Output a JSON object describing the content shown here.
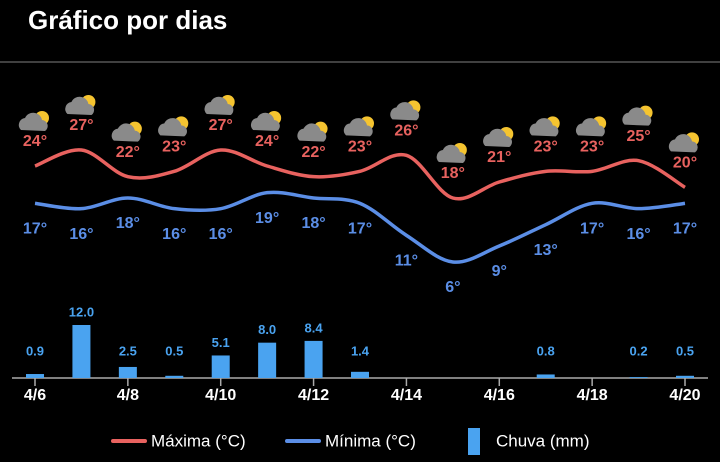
{
  "chart_data": {
    "type": "weather",
    "title": "Gráfico por dias",
    "categories": [
      "4/6",
      null,
      "4/8",
      null,
      "4/10",
      null,
      "4/12",
      null,
      "4/14",
      null,
      "4/16",
      null,
      "4/18",
      null,
      "4/20"
    ],
    "series": [
      {
        "name": "Máxima (°C)",
        "color": "#e8625f",
        "type": "line",
        "values": [
          24,
          27,
          22,
          23,
          27,
          24,
          22,
          23,
          26,
          18,
          21,
          23,
          23,
          25,
          20
        ],
        "value_labels": [
          "24°",
          "27°",
          "22°",
          "23°",
          "27°",
          "24°",
          "22°",
          "23°",
          "26°",
          "18°",
          "21°",
          "23°",
          "23°",
          "25°",
          "20°"
        ]
      },
      {
        "name": "Mínima (°C)",
        "color": "#5b8ee6",
        "type": "line",
        "values": [
          17,
          16,
          18,
          16,
          16,
          19,
          18,
          17,
          11,
          6,
          9,
          13,
          17,
          16,
          17
        ],
        "value_labels": [
          "17°",
          "16°",
          "18°",
          "16°",
          "16°",
          "19°",
          "18°",
          "17°",
          "11°",
          "6°",
          "9°",
          "13°",
          "17°",
          "16°",
          "17°"
        ]
      },
      {
        "name": "Chuva (mm)",
        "color": "#4aa3f0",
        "type": "bar",
        "values": [
          0.9,
          12.0,
          2.5,
          0.5,
          5.1,
          8.0,
          8.4,
          1.4,
          null,
          null,
          null,
          0.8,
          null,
          0.2,
          0.5
        ],
        "value_labels": [
          "0.9",
          "12.0",
          "2.5",
          "0.5",
          "5.1",
          "8.0",
          "8.4",
          "1.4",
          null,
          null,
          null,
          "0.8",
          null,
          "0.2",
          "0.5"
        ]
      }
    ]
  }
}
